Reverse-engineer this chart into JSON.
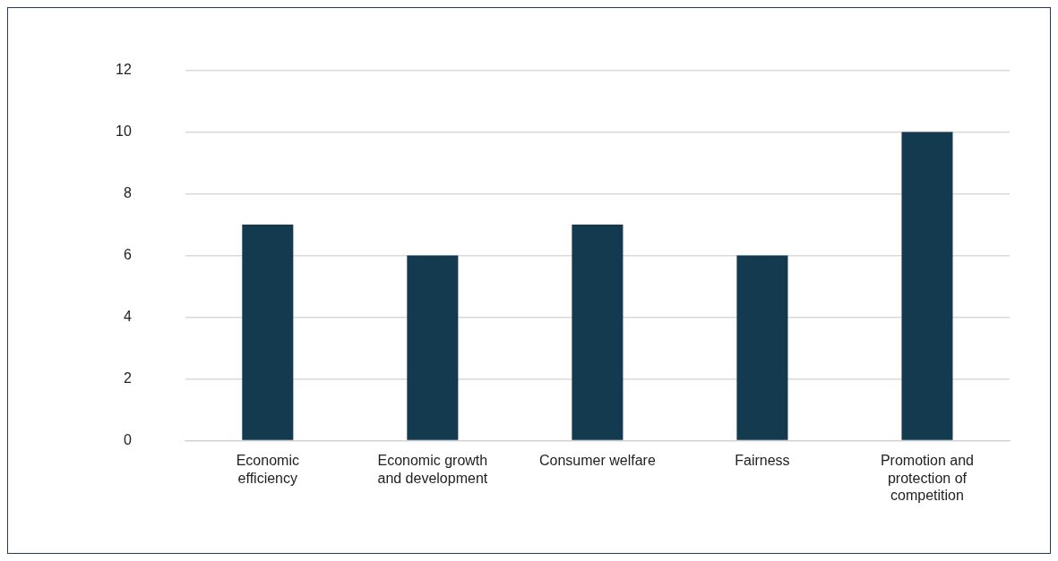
{
  "chart_data": {
    "type": "bar",
    "categories": [
      "Economic efficiency",
      "Economic growth and development",
      "Consumer welfare",
      "Fairness",
      "Promotion and protection of competition"
    ],
    "values": [
      7,
      6,
      7,
      6,
      10
    ],
    "color": "#143a50",
    "ylim": [
      0,
      12
    ],
    "yticks": [
      0,
      2,
      4,
      6,
      8,
      10,
      12
    ],
    "grid": "y"
  }
}
